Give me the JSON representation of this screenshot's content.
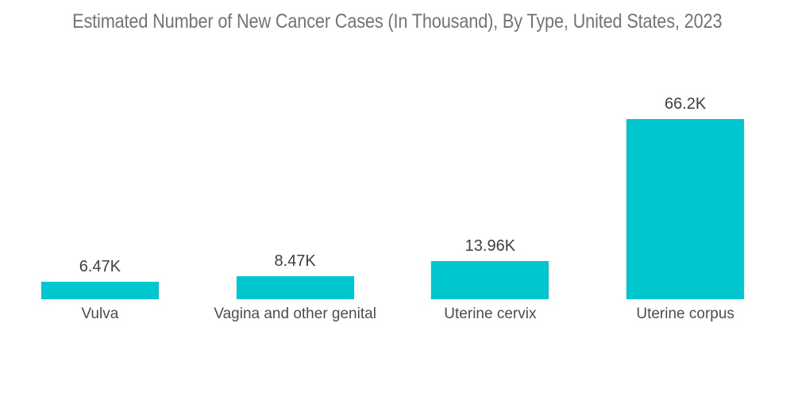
{
  "title": "Estimated Number of New Cancer Cases (In Thousand), By Type, United States, 2023",
  "colors": {
    "bar": "#00C6CF",
    "title_text": "#747474",
    "value_label_text": "#3f3f3f",
    "category_label_text": "#4d4d4d",
    "background": "#ffffff"
  },
  "chart_data": {
    "type": "bar",
    "title": "Estimated Number of New Cancer Cases (In Thousand), By Type, United States, 2023",
    "categories": [
      "Vulva",
      "Vagina and other genital",
      "Uterine cervix",
      "Uterine corpus"
    ],
    "values": [
      6.47,
      8.47,
      13.96,
      66.2
    ],
    "value_labels": [
      "6.47K",
      "8.47K",
      "13.96K",
      "66.2K"
    ],
    "xlabel": "",
    "ylabel": "",
    "unit": "Thousand",
    "ylim": [
      0,
      70
    ],
    "grid": false,
    "legend": false,
    "axes_visible": false,
    "bar_color": "#00C6CF",
    "orientation": "vertical"
  }
}
